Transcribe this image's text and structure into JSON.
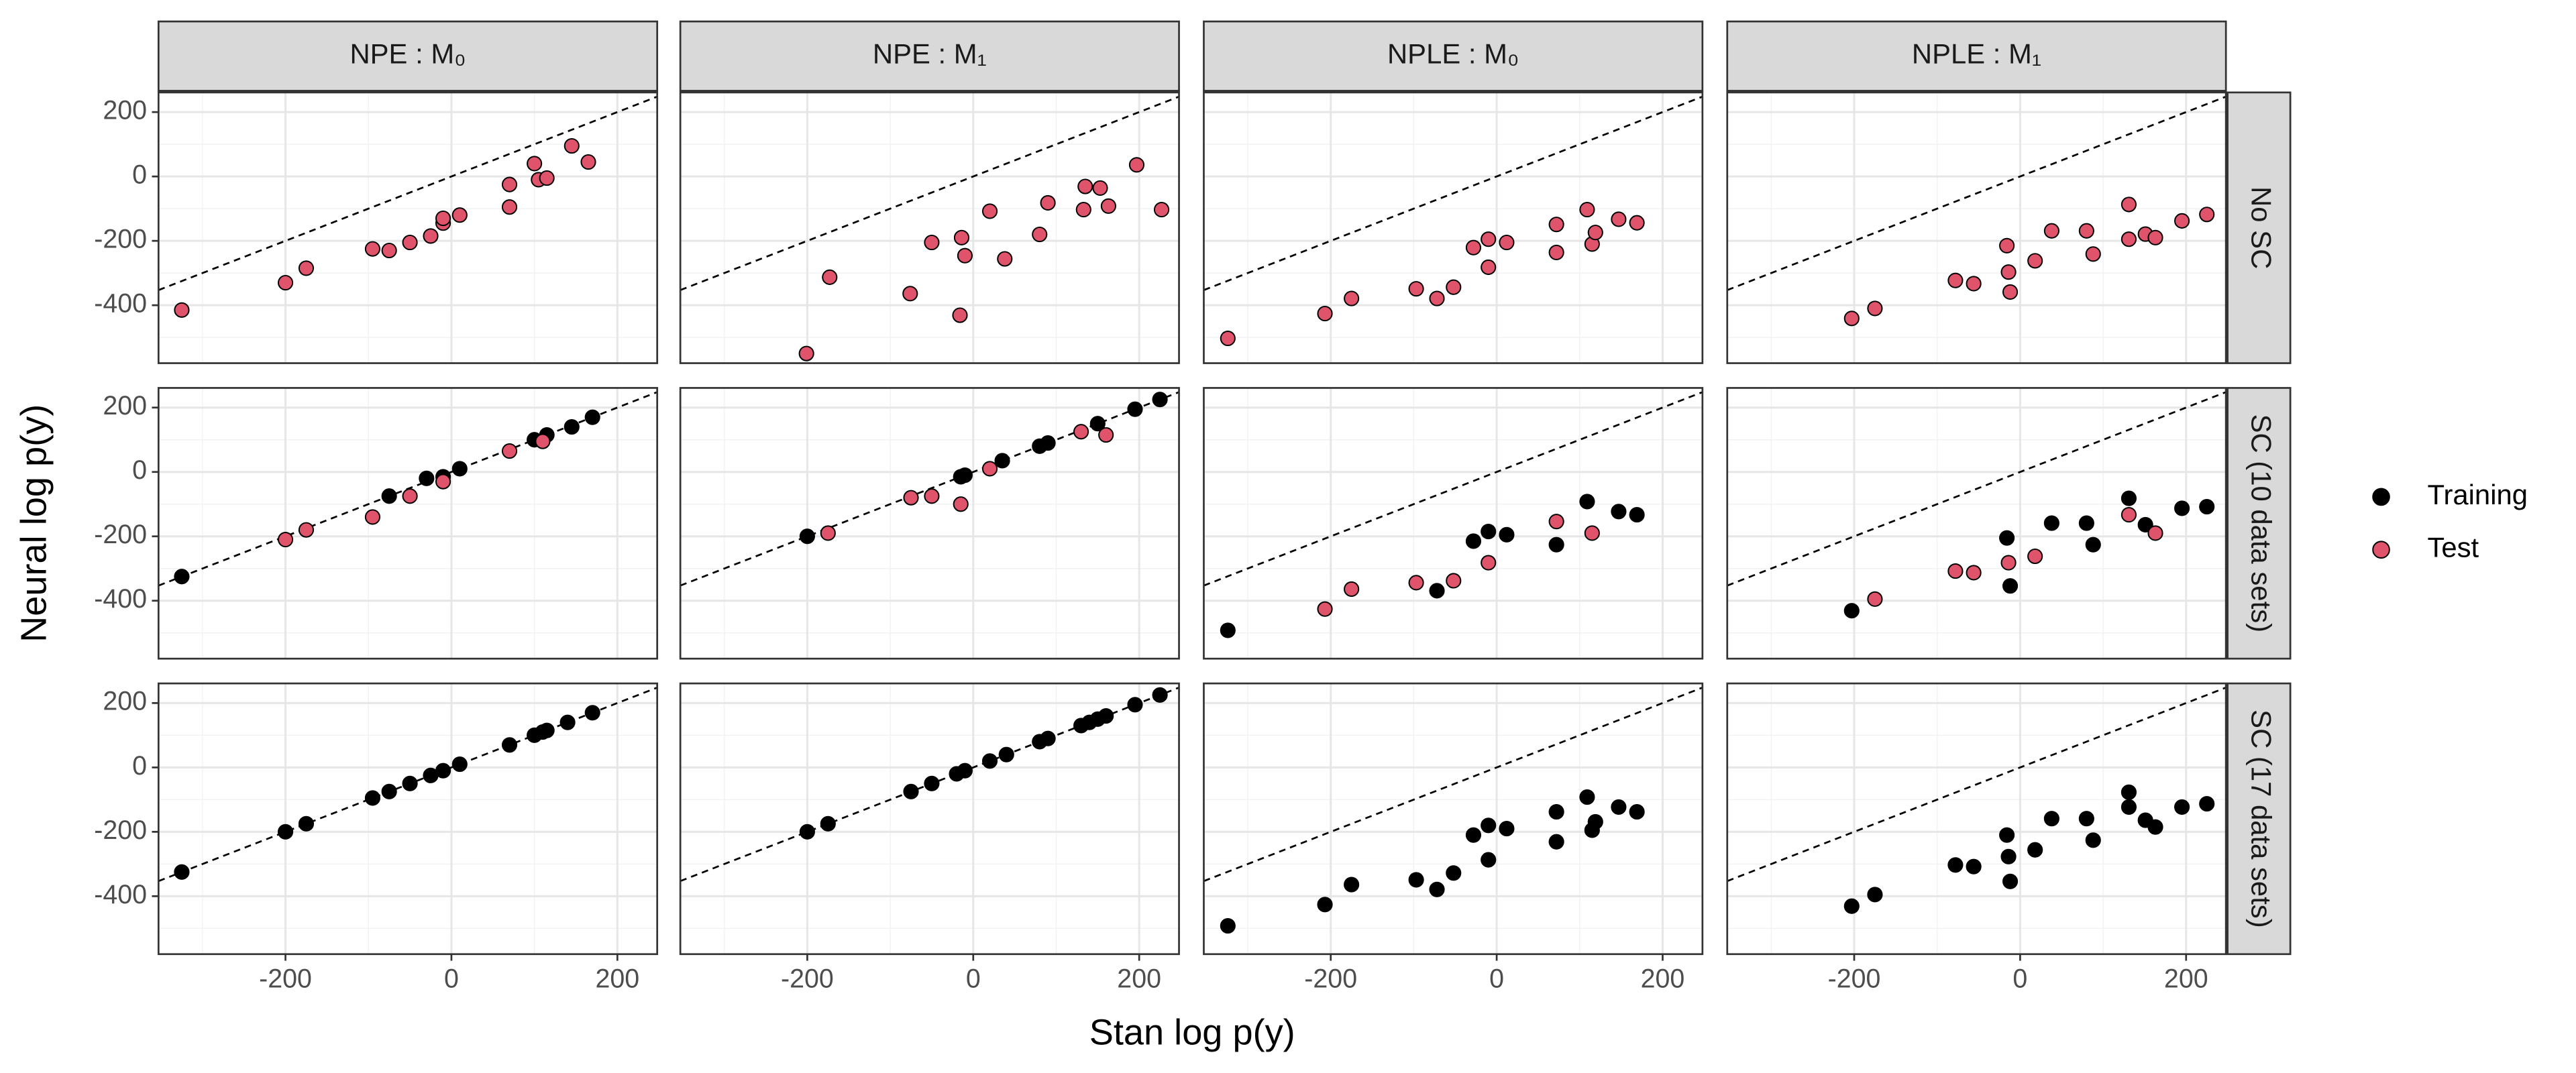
{
  "chart_data": {
    "type": "scatter",
    "x_label": "Stan log p(y)",
    "y_label": "Neural log p(y)",
    "xlim": [
      -353,
      248
    ],
    "ylim": [
      -580,
      261
    ],
    "xticks": [
      -200,
      0,
      200
    ],
    "yticks": [
      -400,
      -200,
      0,
      200
    ],
    "xminor": [
      -300,
      -100,
      100
    ],
    "yminor": [
      -500,
      -300,
      -100,
      100
    ],
    "grid": true,
    "legend": "right",
    "series": [
      {
        "name": "Training",
        "color": "#000000"
      },
      {
        "name": "Test",
        "color": "#DF536B"
      }
    ],
    "columns": [
      "NPE : M₀",
      "NPE : M₁",
      "NPLE : M₀",
      "NPLE : M₁"
    ],
    "rows": [
      {
        "label": "No SC",
        "panels": [
          {
            "series": [
              {
                "x": [],
                "y": []
              },
              {
                "x": [
                  -325,
                  -200,
                  -175,
                  -95,
                  -75,
                  -50,
                  -25,
                  -10,
                  -10,
                  10,
                  70,
                  70,
                  100,
                  105,
                  115,
                  145,
                  165
                ],
                "y": [
                  -415,
                  -330,
                  -285,
                  -225,
                  -230,
                  -205,
                  -185,
                  -145,
                  -130,
                  -120,
                  -95,
                  -25,
                  40,
                  -10,
                  -5,
                  95,
                  45
                ]
              }
            ]
          },
          {
            "series": [
              {
                "x": [],
                "y": []
              },
              {
                "x": [
                  -201,
                  -173,
                  -76,
                  -50,
                  -14,
                  -10,
                  -16,
                  20,
                  38,
                  80,
                  90,
                  133,
                  135,
                  153,
                  163,
                  197,
                  227
                ],
                "y": [
                  -550,
                  -313,
                  -364,
                  -205,
                  -190,
                  -246,
                  -431,
                  -108,
                  -256,
                  -180,
                  -82,
                  -103,
                  -31,
                  -36,
                  -92,
                  36,
                  -103
                ]
              }
            ]
          },
          {
            "series": [
              {
                "x": [],
                "y": []
              },
              {
                "x": [
                  -324,
                  -207,
                  -175,
                  -97,
                  -72,
                  -52,
                  -28,
                  -10,
                  -10,
                  12,
                  72,
                  72,
                  109,
                  115,
                  119,
                  147,
                  169
                ],
                "y": [
                  -503,
                  -426,
                  -379,
                  -349,
                  -379,
                  -344,
                  -221,
                  -195,
                  -282,
                  -205,
                  -149,
                  -236,
                  -103,
                  -210,
                  -174,
                  -133,
                  -144
                ]
              }
            ]
          },
          {
            "series": [
              {
                "x": [],
                "y": []
              },
              {
                "x": [
                  -203,
                  -175,
                  -78,
                  -56,
                  -16,
                  -14,
                  -12,
                  18,
                  38,
                  80,
                  88,
                  131,
                  131,
                  151,
                  163,
                  195,
                  225
                ],
                "y": [
                  -441,
                  -410,
                  -323,
                  -333,
                  -215,
                  -297,
                  -359,
                  -262,
                  -169,
                  -169,
                  -241,
                  -87,
                  -195,
                  -179,
                  -190,
                  -138,
                  -118
                ]
              }
            ]
          }
        ]
      },
      {
        "label": "SC (10 data sets)",
        "panels": [
          {
            "series": [
              {
                "x": [
                  -325,
                  -75,
                  -30,
                  -10,
                  10,
                  100,
                  115,
                  145,
                  170
                ],
                "y": [
                  -325,
                  -75,
                  -20,
                  -15,
                  10,
                  100,
                  115,
                  140,
                  170
                ]
              },
              {
                "x": [
                  -200,
                  -175,
                  -95,
                  -50,
                  -10,
                  70,
                  110
                ],
                "y": [
                  -210,
                  -180,
                  -140,
                  -75,
                  -30,
                  65,
                  95
                ]
              }
            ]
          },
          {
            "series": [
              {
                "x": [
                  -200,
                  -15,
                  -10,
                  35,
                  80,
                  90,
                  150,
                  195,
                  225
                ],
                "y": [
                  -200,
                  -15,
                  -10,
                  35,
                  80,
                  90,
                  150,
                  195,
                  225
                ]
              },
              {
                "x": [
                  -175,
                  -75,
                  -50,
                  -15,
                  20,
                  130,
                  160
                ],
                "y": [
                  -190,
                  -80,
                  -75,
                  -100,
                  10,
                  125,
                  115
                ]
              }
            ]
          },
          {
            "series": [
              {
                "x": [
                  -324,
                  -72,
                  -28,
                  -10,
                  12,
                  72,
                  109,
                  147,
                  169
                ],
                "y": [
                  -492,
                  -369,
                  -215,
                  -185,
                  -195,
                  -226,
                  -92,
                  -123,
                  -133
                ]
              },
              {
                "x": [
                  -207,
                  -175,
                  -97,
                  -52,
                  -10,
                  72,
                  115
                ],
                "y": [
                  -426,
                  -364,
                  -344,
                  -338,
                  -282,
                  -154,
                  -190
                ]
              }
            ]
          },
          {
            "series": [
              {
                "x": [
                  -203,
                  -16,
                  -12,
                  38,
                  80,
                  88,
                  131,
                  151,
                  195,
                  225
                ],
                "y": [
                  -431,
                  -205,
                  -354,
                  -159,
                  -159,
                  -226,
                  -82,
                  -164,
                  -113,
                  -108
                ]
              },
              {
                "x": [
                  -175,
                  -78,
                  -56,
                  -14,
                  18,
                  131,
                  163
                ],
                "y": [
                  -395,
                  -308,
                  -313,
                  -282,
                  -262,
                  -133,
                  -190
                ]
              }
            ]
          }
        ]
      },
      {
        "label": "SC (17 data sets)",
        "panels": [
          {
            "series": [
              {
                "x": [
                  -325,
                  -200,
                  -175,
                  -95,
                  -75,
                  -50,
                  -25,
                  -10,
                  10,
                  70,
                  100,
                  110,
                  115,
                  140,
                  170
                ],
                "y": [
                  -325,
                  -200,
                  -175,
                  -95,
                  -75,
                  -50,
                  -25,
                  -10,
                  10,
                  70,
                  100,
                  110,
                  115,
                  140,
                  170
                ]
              },
              {
                "x": [],
                "y": []
              }
            ]
          },
          {
            "series": [
              {
                "x": [
                  -200,
                  -175,
                  -75,
                  -50,
                  -20,
                  -10,
                  20,
                  40,
                  80,
                  90,
                  130,
                  140,
                  150,
                  160,
                  195,
                  225
                ],
                "y": [
                  -200,
                  -175,
                  -75,
                  -50,
                  -20,
                  -10,
                  20,
                  40,
                  80,
                  90,
                  130,
                  140,
                  150,
                  160,
                  195,
                  225
                ]
              },
              {
                "x": [],
                "y": []
              }
            ]
          },
          {
            "series": [
              {
                "x": [
                  -324,
                  -207,
                  -175,
                  -97,
                  -72,
                  -52,
                  -28,
                  -10,
                  -10,
                  12,
                  72,
                  72,
                  109,
                  115,
                  119,
                  147,
                  169
                ],
                "y": [
                  -492,
                  -426,
                  -364,
                  -349,
                  -379,
                  -328,
                  -210,
                  -180,
                  -287,
                  -190,
                  -138,
                  -231,
                  -92,
                  -195,
                  -169,
                  -123,
                  -138
                ]
              },
              {
                "x": [],
                "y": []
              }
            ]
          },
          {
            "series": [
              {
                "x": [
                  -203,
                  -175,
                  -78,
                  -56,
                  -16,
                  -14,
                  -12,
                  18,
                  38,
                  80,
                  88,
                  131,
                  131,
                  151,
                  163,
                  195,
                  225
                ],
                "y": [
                  -431,
                  -395,
                  -303,
                  -308,
                  -210,
                  -277,
                  -354,
                  -256,
                  -159,
                  -159,
                  -226,
                  -77,
                  -123,
                  -164,
                  -185,
                  -123,
                  -113
                ]
              },
              {
                "x": [],
                "y": []
              }
            ]
          }
        ]
      }
    ]
  }
}
